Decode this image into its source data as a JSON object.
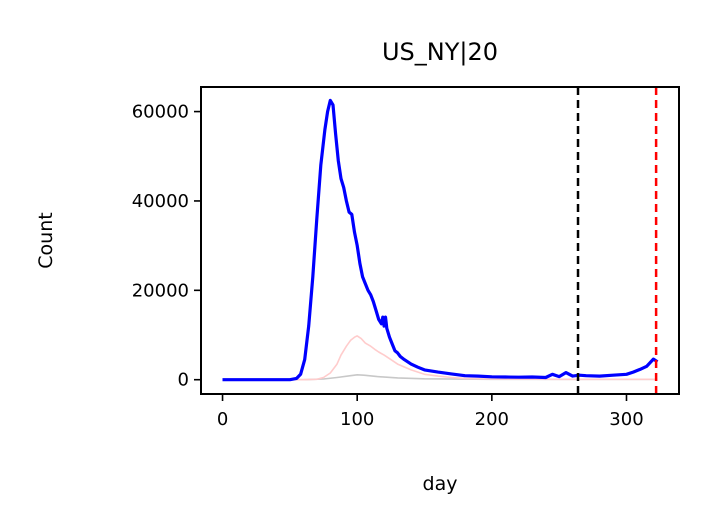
{
  "chart_data": {
    "type": "line",
    "title": "US_NY|20",
    "xlabel": "day",
    "ylabel": "Count",
    "xlim": [
      -16,
      339
    ],
    "ylim": [
      -3200,
      65500
    ],
    "xticks": [
      0,
      100,
      200,
      300
    ],
    "yticks": [
      0,
      20000,
      40000,
      60000
    ],
    "grid": false,
    "legend": "none",
    "series": [
      {
        "color": "#0000ff",
        "x": [
          0,
          50,
          55,
          58,
          61,
          64,
          67,
          70,
          73,
          76,
          78,
          80,
          82,
          84,
          86,
          88,
          90,
          92,
          94,
          96,
          98,
          100,
          102,
          104,
          106,
          108,
          110,
          112,
          114,
          116,
          118,
          119,
          120,
          121,
          122,
          124,
          126,
          128,
          130,
          132,
          135,
          140,
          145,
          150,
          160,
          170,
          180,
          190,
          200,
          210,
          220,
          230,
          240,
          245,
          250,
          255,
          260,
          265,
          270,
          280,
          290,
          300,
          305,
          310,
          315,
          320,
          323
        ],
        "y": [
          0,
          0,
          300,
          1200,
          4500,
          12000,
          23000,
          36000,
          48000,
          56000,
          60000,
          62500,
          61500,
          55000,
          49000,
          45000,
          43000,
          40000,
          37500,
          37000,
          33000,
          30000,
          26000,
          23000,
          21500,
          20000,
          19000,
          17500,
          15500,
          13500,
          12500,
          14000,
          12000,
          14000,
          11500,
          9500,
          8000,
          6500,
          6000,
          5200,
          4500,
          3500,
          2800,
          2200,
          1700,
          1300,
          900,
          800,
          650,
          600,
          550,
          600,
          500,
          1200,
          700,
          1600,
          800,
          1000,
          900,
          800,
          1000,
          1200,
          1700,
          2300,
          3000,
          4600,
          4000
        ],
        "width": 3.2
      },
      {
        "color": "#ffcccc",
        "x": [
          0,
          60,
          70,
          75,
          80,
          85,
          88,
          92,
          95,
          98,
          100,
          103,
          106,
          110,
          113,
          116,
          120,
          125,
          130,
          140,
          150,
          160,
          170,
          180,
          200,
          250,
          300,
          323
        ],
        "y": [
          0,
          0,
          100,
          500,
          1500,
          3500,
          5500,
          7500,
          8800,
          9500,
          9800,
          9200,
          8200,
          7500,
          6800,
          6200,
          5500,
          4500,
          3500,
          2200,
          1200,
          800,
          500,
          300,
          150,
          100,
          100,
          100
        ],
        "width": 1.6
      },
      {
        "color": "#c8c8c8",
        "x": [
          0,
          60,
          75,
          85,
          95,
          100,
          105,
          115,
          130,
          150,
          200,
          323
        ],
        "y": [
          0,
          0,
          150,
          500,
          900,
          1100,
          1000,
          700,
          400,
          200,
          80,
          80
        ],
        "width": 1.6
      }
    ],
    "vlines": [
      {
        "x": 264,
        "color": "#000000"
      },
      {
        "x": 322,
        "color": "#ff0000"
      }
    ]
  }
}
